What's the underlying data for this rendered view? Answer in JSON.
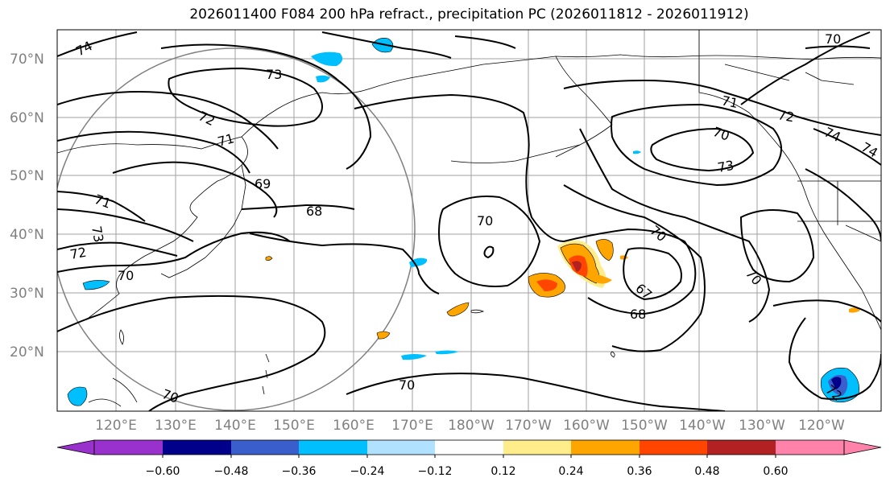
{
  "title": "2026011400 F084 200 hPa refract., precipitation PC (2026011812 - 2026011912)",
  "lat_labels": [
    "70°N",
    "60°N",
    "50°N",
    "40°N",
    "30°N",
    "20°N"
  ],
  "lon_labels": [
    "120°E",
    "130°E",
    "140°E",
    "150°E",
    "160°E",
    "170°E",
    "180°W",
    "170°W",
    "160°W",
    "150°W",
    "140°W",
    "130°W",
    "120°W"
  ],
  "contour_labels": [
    "74",
    "73",
    "72",
    "71",
    "69",
    "68",
    "73",
    "72",
    "71",
    "70",
    "67",
    "68",
    "70",
    "70",
    "70",
    "71",
    "72",
    "74",
    "74",
    "73",
    "70",
    "70",
    "72",
    "70",
    "70"
  ],
  "colorbar": {
    "ticks": [
      "−0.60",
      "−0.48",
      "−0.36",
      "−0.24",
      "−0.12",
      "0.12",
      "0.24",
      "0.36",
      "0.48",
      "0.60"
    ],
    "colors": [
      "#9932cc",
      "#00008b",
      "#3a5fcd",
      "#00bfff",
      "#b0e2ff",
      "#ffffff",
      "#ffec8b",
      "#ffa500",
      "#ff4500",
      "#b22222",
      "#ff82ab"
    ]
  }
}
